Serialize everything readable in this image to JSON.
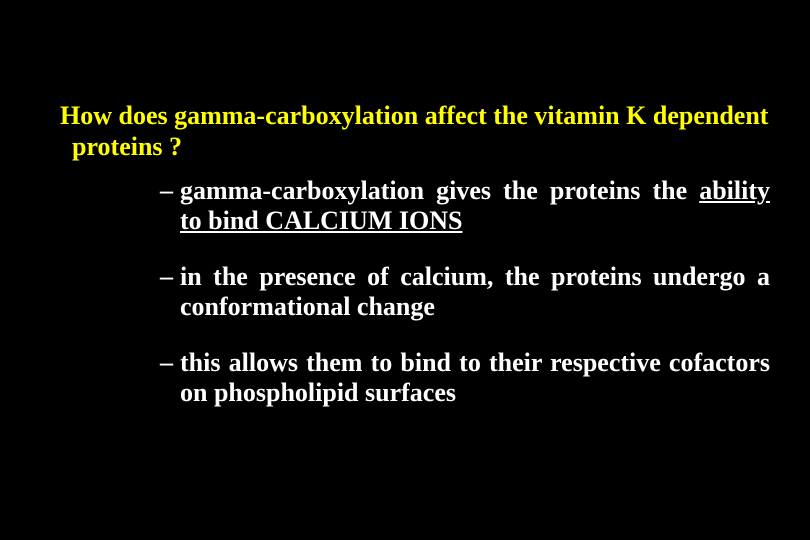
{
  "slide": {
    "heading": "How does gamma-carboxylation affect the vitamin K dependent proteins ?",
    "bullets": [
      {
        "pre": "gamma-carboxylation gives the proteins the ",
        "underlined": "ability to bind CALCIUM IONS",
        "post": ""
      },
      {
        "pre": "in the presence of calcium, the proteins undergo a conformational change",
        "underlined": "",
        "post": ""
      },
      {
        "pre": "this allows them to bind to their respective cofactors on phospholipid surfaces",
        "underlined": "",
        "post": ""
      }
    ]
  },
  "style": {
    "background_color": "#000000",
    "heading_color": "#ffff00",
    "body_color": "#ffffff",
    "heading_fontsize": 26,
    "body_fontsize": 26,
    "font_family": "Times New Roman",
    "font_weight": "bold",
    "bullet_char": "–",
    "slide_width": 810,
    "slide_height": 540
  }
}
